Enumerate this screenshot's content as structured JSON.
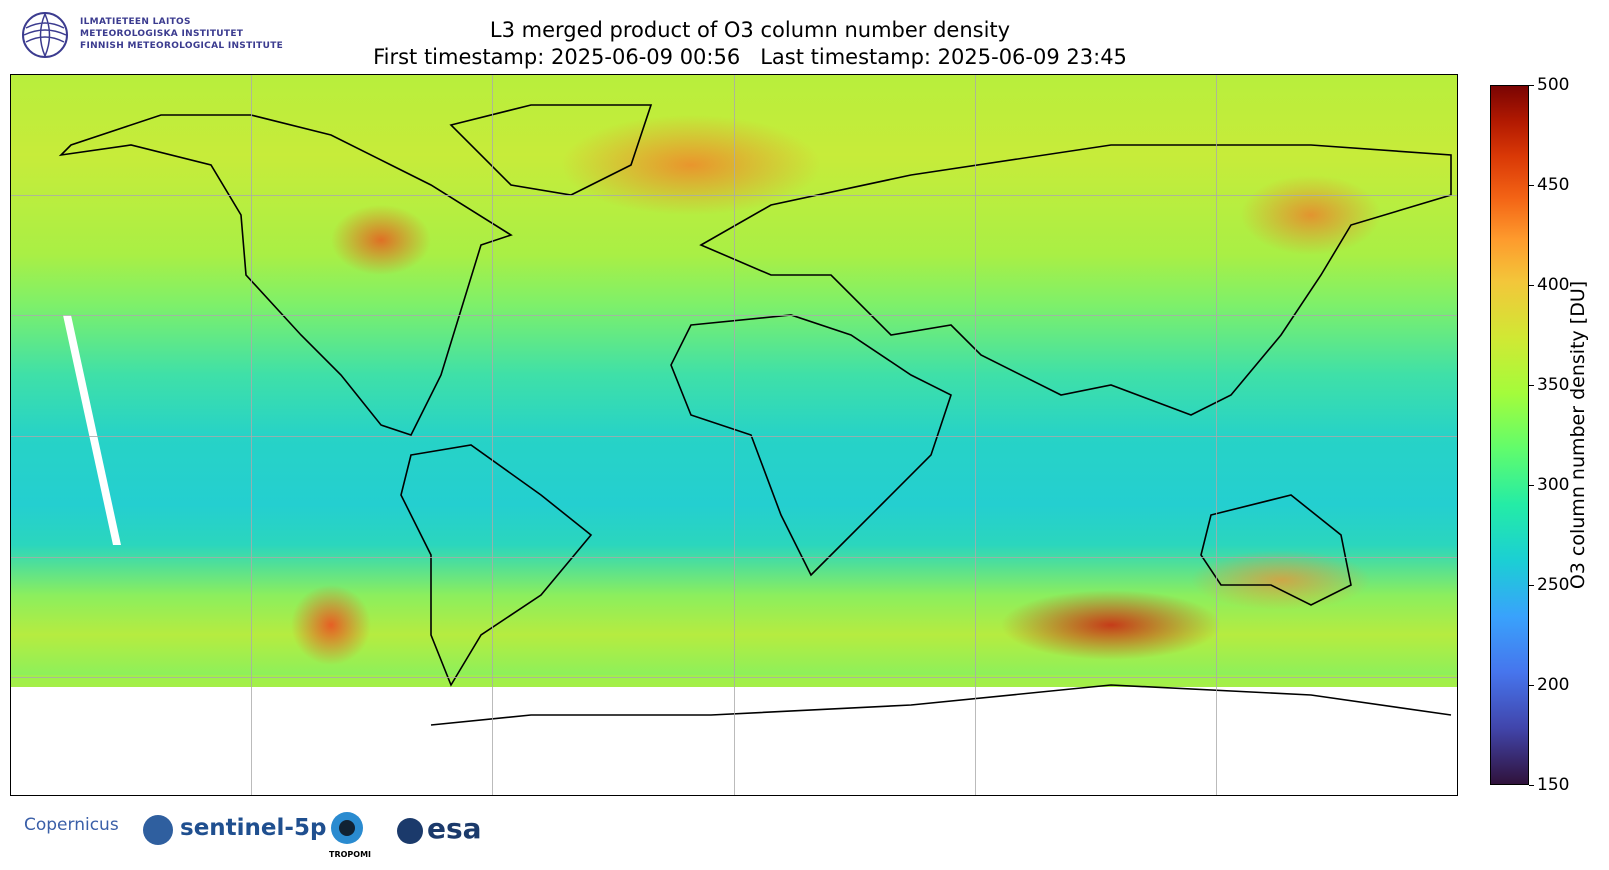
{
  "header": {
    "logo_lines": [
      "ILMATIETEEN LAITOS",
      "METEOROLOGISKA INSTITUTET",
      "FINNISH METEOROLOGICAL INSTITUTE"
    ],
    "title": "L3 merged product of O3 column number density",
    "subtitle": "First timestamp: 2025-06-09 00:56   Last timestamp: 2025-06-09 23:45"
  },
  "colorbar": {
    "label": "O3 column number density [DU]",
    "lim": [
      150,
      500
    ],
    "ticks": [
      150,
      200,
      250,
      300,
      350,
      400,
      450,
      500
    ]
  },
  "footer": {
    "logos": [
      "Copernicus",
      "sentinel-5p",
      "TROPOMI",
      "esa"
    ]
  }
}
